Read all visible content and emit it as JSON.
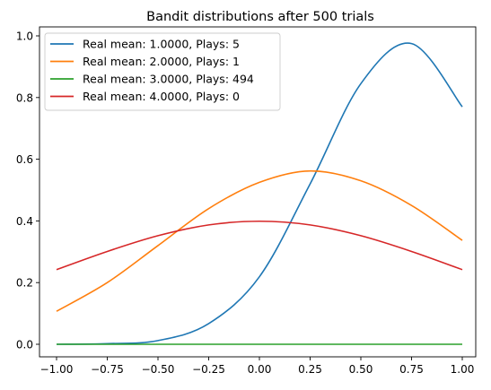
{
  "chart_data": {
    "type": "line",
    "title": "Bandit distributions after 500 trials",
    "xlabel": "",
    "ylabel": "",
    "xlim": [
      -1.0,
      1.0
    ],
    "ylim": [
      0.0,
      1.0
    ],
    "x_ticks": [
      -1.0,
      -0.75,
      -0.5,
      -0.25,
      0.0,
      0.25,
      0.5,
      0.75,
      1.0
    ],
    "x_tick_labels": [
      "−1.00",
      "−0.75",
      "−0.50",
      "−0.25",
      "0.00",
      "0.25",
      "0.50",
      "0.75",
      "1.00"
    ],
    "y_ticks": [
      0.0,
      0.2,
      0.4,
      0.6,
      0.8,
      1.0
    ],
    "y_tick_labels": [
      "0.0",
      "0.2",
      "0.4",
      "0.6",
      "0.8",
      "1.0"
    ],
    "grid": false,
    "legend_position": "top-left",
    "x": [
      -1.0,
      -0.75,
      -0.5,
      -0.25,
      0.0,
      0.25,
      0.5,
      0.75,
      1.0
    ],
    "series": [
      {
        "name": "Real mean: 1.0000, Plays: 5",
        "color": "#1f77b4",
        "values": [
          0.0,
          0.002,
          0.012,
          0.067,
          0.219,
          0.52,
          0.845,
          0.975,
          0.77
        ]
      },
      {
        "name": "Real mean: 2.0000, Plays: 1",
        "color": "#ff7f0e",
        "values": [
          0.107,
          0.2,
          0.32,
          0.44,
          0.525,
          0.562,
          0.53,
          0.45,
          0.337
        ]
      },
      {
        "name": "Real mean: 3.0000, Plays: 494",
        "color": "#2ca02c",
        "values": [
          0.0,
          0.0,
          0.0,
          0.0,
          0.0,
          0.0,
          0.0,
          0.0,
          0.0
        ]
      },
      {
        "name": "Real mean: 4.0000, Plays: 0",
        "color": "#d62728",
        "values": [
          0.242,
          0.301,
          0.352,
          0.387,
          0.399,
          0.387,
          0.352,
          0.301,
          0.242
        ]
      }
    ]
  }
}
